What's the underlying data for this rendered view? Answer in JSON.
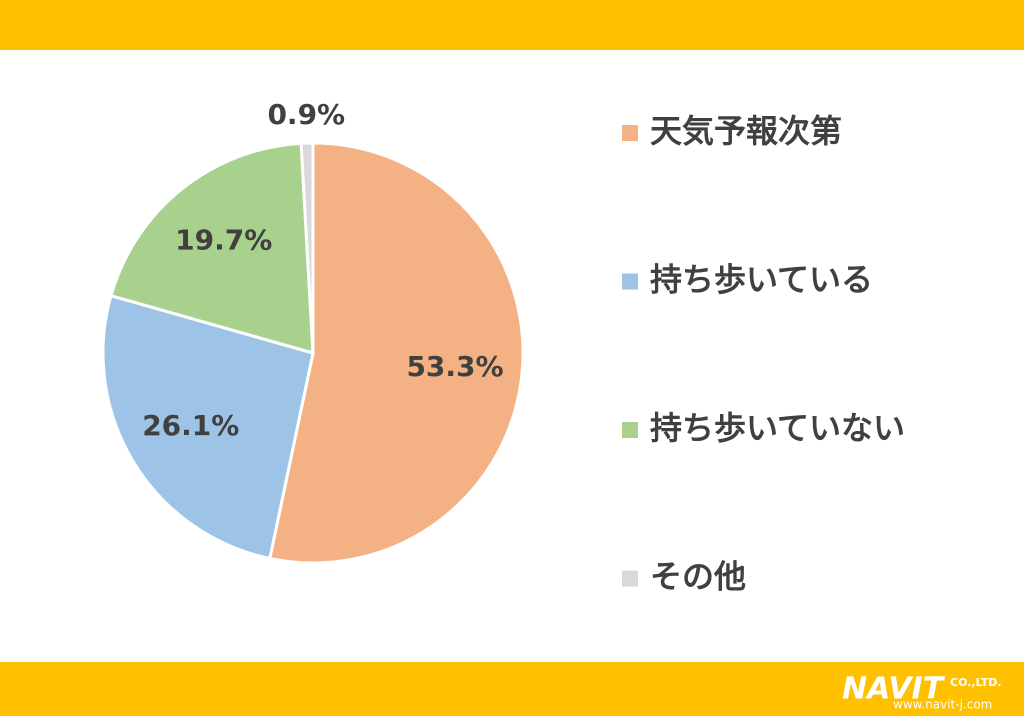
{
  "chart_data": {
    "type": "pie",
    "categories": [
      "天気予報次第",
      "持ち歩いている",
      "持ち歩いていない",
      "その他"
    ],
    "values": [
      53.3,
      26.1,
      19.7,
      0.9
    ],
    "value_labels": [
      "53.3%",
      "26.1%",
      "19.7%",
      "0.9%"
    ],
    "colors": [
      "#F4B183",
      "#9DC3E6",
      "#A9D18E",
      "#D9D9D9"
    ],
    "legend": "right"
  },
  "footer": {
    "brand": "NAVIT",
    "company": "CO.,LTD.",
    "url": "www.navit-j.com"
  }
}
